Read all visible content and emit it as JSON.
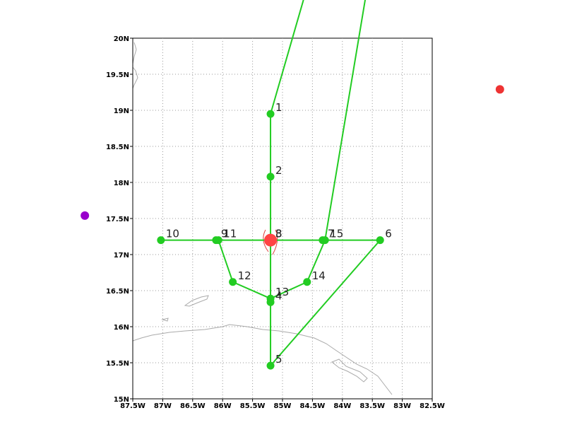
{
  "chart_data": {
    "type": "track",
    "xlim": [
      -87.5,
      -82.5
    ],
    "ylim": [
      15,
      20
    ],
    "xticks": [
      {
        "value": -87.5,
        "label": "87.5W"
      },
      {
        "value": -87,
        "label": "87W"
      },
      {
        "value": -86.5,
        "label": "86.5W"
      },
      {
        "value": -86,
        "label": "86W"
      },
      {
        "value": -85.5,
        "label": "85.5W"
      },
      {
        "value": -85,
        "label": "85W"
      },
      {
        "value": -84.5,
        "label": "84.5W"
      },
      {
        "value": -84,
        "label": "84W"
      },
      {
        "value": -83.5,
        "label": "83.5W"
      },
      {
        "value": -83,
        "label": "83W"
      },
      {
        "value": -82.5,
        "label": "82.5W"
      }
    ],
    "yticks": [
      {
        "value": 15,
        "label": "15N"
      },
      {
        "value": 15.5,
        "label": "15.5N"
      },
      {
        "value": 16,
        "label": "16N"
      },
      {
        "value": 16.5,
        "label": "16.5N"
      },
      {
        "value": 17,
        "label": "17N"
      },
      {
        "value": 17.5,
        "label": "17.5N"
      },
      {
        "value": 18,
        "label": "18N"
      },
      {
        "value": 18.5,
        "label": "18.5N"
      },
      {
        "value": 19,
        "label": "19N"
      },
      {
        "value": 19.5,
        "label": "19.5N"
      },
      {
        "value": 20,
        "label": "20N"
      }
    ],
    "grid": true,
    "track": {
      "color": "#22cc22",
      "labels": [
        null,
        "1",
        "2",
        "3",
        "4",
        "5",
        "6",
        "7",
        "8",
        "9",
        "10",
        "11",
        "12",
        "13",
        "14",
        "15",
        null
      ],
      "x": [
        -84.65,
        -85.2,
        -85.2,
        -85.2,
        -85.2,
        -85.2,
        -83.37,
        -84.33,
        -85.2,
        -86.11,
        -87.03,
        -86.07,
        -85.83,
        -85.2,
        -84.59,
        -84.29,
        -83.62
      ],
      "y": [
        20.53,
        18.95,
        18.08,
        17.2,
        16.34,
        15.46,
        17.2,
        17.2,
        17.2,
        17.2,
        17.2,
        17.2,
        16.62,
        16.39,
        16.62,
        17.2,
        20.53
      ]
    },
    "center": {
      "x": -85.2,
      "y": 17.2,
      "color": "#ff4444"
    },
    "points": [
      {
        "x": -81.37,
        "y": 19.29,
        "color": "#ee3333"
      },
      {
        "x": -88.3,
        "y": 17.54,
        "color": "#9900cc"
      }
    ]
  }
}
